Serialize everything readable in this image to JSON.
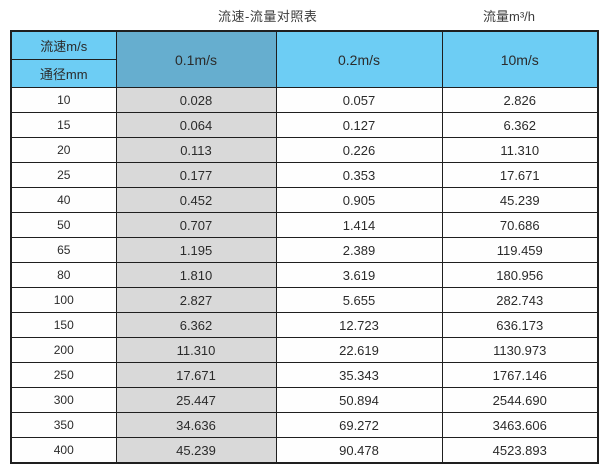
{
  "page": {
    "title": "流速-流量对照表",
    "unit_label": "流量m³/h"
  },
  "table": {
    "corner": {
      "top": "流速m/s",
      "bottom": "通径mm"
    },
    "velocity_headers": [
      "0.1m/s",
      "0.2m/s",
      "10m/s"
    ],
    "rows": [
      {
        "dn": "10",
        "values": [
          "0.028",
          "0.057",
          "2.826"
        ]
      },
      {
        "dn": "15",
        "values": [
          "0.064",
          "0.127",
          "6.362"
        ]
      },
      {
        "dn": "20",
        "values": [
          "0.113",
          "0.226",
          "11.310"
        ]
      },
      {
        "dn": "25",
        "values": [
          "0.177",
          "0.353",
          "17.671"
        ]
      },
      {
        "dn": "40",
        "values": [
          "0.452",
          "0.905",
          "45.239"
        ]
      },
      {
        "dn": "50",
        "values": [
          "0.707",
          "1.414",
          "70.686"
        ]
      },
      {
        "dn": "65",
        "values": [
          "1.195",
          "2.389",
          "119.459"
        ]
      },
      {
        "dn": "80",
        "values": [
          "1.810",
          "3.619",
          "180.956"
        ]
      },
      {
        "dn": "100",
        "values": [
          "2.827",
          "5.655",
          "282.743"
        ]
      },
      {
        "dn": "150",
        "values": [
          "6.362",
          "12.723",
          "636.173"
        ]
      },
      {
        "dn": "200",
        "values": [
          "11.310",
          "22.619",
          "1130.973"
        ]
      },
      {
        "dn": "250",
        "values": [
          "17.671",
          "35.343",
          "1767.146"
        ]
      },
      {
        "dn": "300",
        "values": [
          "25.447",
          "50.894",
          "2544.690"
        ]
      },
      {
        "dn": "350",
        "values": [
          "34.636",
          "69.272",
          "3463.606"
        ]
      },
      {
        "dn": "400",
        "values": [
          "45.239",
          "90.478",
          "4523.893"
        ]
      }
    ]
  },
  "colors": {
    "header_blue": "#6dcdf4",
    "header_blue_dark": "#66aecf",
    "shaded_column_grey": "#d9d9d9",
    "border": "#1f1f1f"
  },
  "chart_data": {
    "type": "table",
    "title": "流速-流量对照表",
    "unit": "流量m³/h",
    "columns": [
      "通径mm",
      "0.1m/s",
      "0.2m/s",
      "10m/s"
    ],
    "rows": [
      [
        10,
        0.028,
        0.057,
        2.826
      ],
      [
        15,
        0.064,
        0.127,
        6.362
      ],
      [
        20,
        0.113,
        0.226,
        11.31
      ],
      [
        25,
        0.177,
        0.353,
        17.671
      ],
      [
        40,
        0.452,
        0.905,
        45.239
      ],
      [
        50,
        0.707,
        1.414,
        70.686
      ],
      [
        65,
        1.195,
        2.389,
        119.459
      ],
      [
        80,
        1.81,
        3.619,
        180.956
      ],
      [
        100,
        2.827,
        5.655,
        282.743
      ],
      [
        150,
        6.362,
        12.723,
        636.173
      ],
      [
        200,
        11.31,
        22.619,
        1130.973
      ],
      [
        250,
        17.671,
        35.343,
        1767.146
      ],
      [
        300,
        25.447,
        50.894,
        2544.69
      ],
      [
        350,
        34.636,
        69.272,
        3463.606
      ],
      [
        400,
        45.239,
        90.478,
        4523.893
      ]
    ]
  }
}
